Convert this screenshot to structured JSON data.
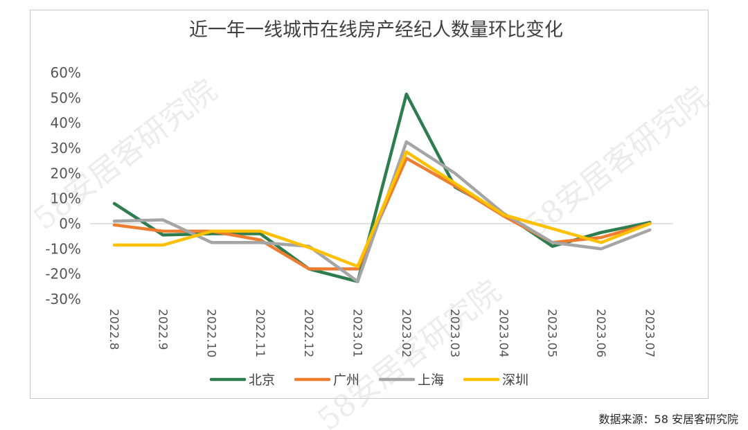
{
  "chart_data": {
    "type": "line",
    "title": "近一年一线城市在线房产经纪人数量环比变化",
    "categories": [
      "2022.8",
      "2022.9",
      "2022.10",
      "2022.11",
      "2022.12",
      "2023.01",
      "2023.02",
      "2023.03",
      "2023.04",
      "2023.05",
      "2023.06",
      "2023.07"
    ],
    "y_tick_labels": [
      "60%",
      "50%",
      "40%",
      "30%",
      "20%",
      "10%",
      "0%",
      "-10%",
      "-20%",
      "-30%"
    ],
    "ylim": [
      -30,
      60
    ],
    "y_unit": "%",
    "grid": false,
    "legend_position": "bottom",
    "series": [
      {
        "name": "北京",
        "color": "#2e7d4f",
        "values": [
          8,
          -4.5,
          -4,
          -4,
          -18,
          -23,
          51.5,
          14.5,
          4,
          -9,
          -3.5,
          0.5
        ]
      },
      {
        "name": "广州",
        "color": "#ed7d31",
        "values": [
          -0.5,
          -3,
          -3,
          -6.5,
          -18,
          -18,
          26,
          15,
          3,
          -7.5,
          -5.5,
          0
        ]
      },
      {
        "name": "上海",
        "color": "#a5a5a5",
        "values": [
          1,
          1.5,
          -7.5,
          -7.5,
          -9,
          -23,
          32.5,
          20,
          4,
          -7.5,
          -10,
          -2.5
        ]
      },
      {
        "name": "深圳",
        "color": "#ffc000",
        "values": [
          -8.5,
          -8.5,
          -3,
          -3,
          -9.5,
          -17,
          28.5,
          16,
          3.5,
          -2,
          -7.5,
          0
        ]
      }
    ]
  },
  "watermark": "58安居客研究院",
  "source": "数据来源：58 安居客研究院"
}
